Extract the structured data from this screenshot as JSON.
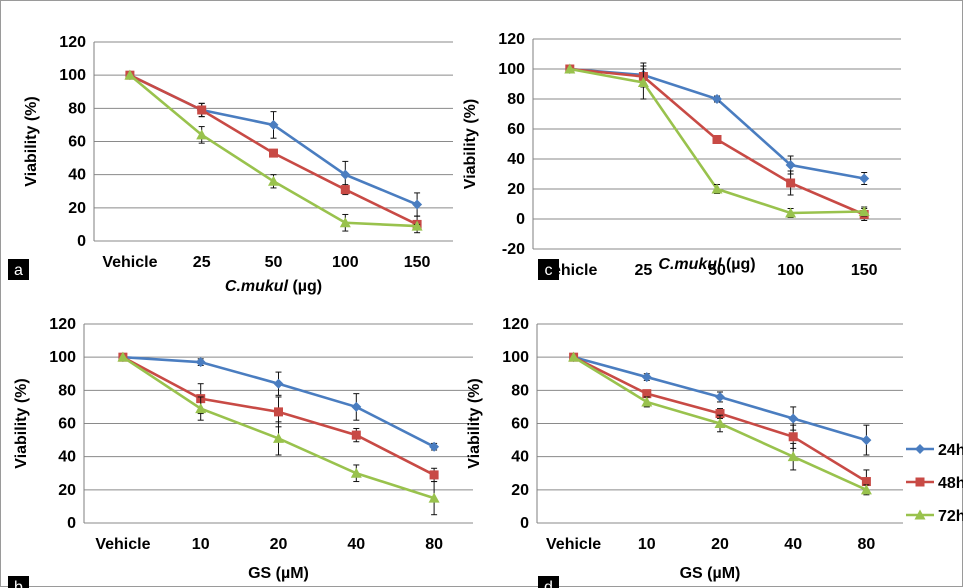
{
  "figure": {
    "colors": {
      "grid": "#8a8a8a",
      "axis": "#7f7f7f",
      "text": "#000000",
      "label_box_bg": "#000000",
      "label_box_fg": "#ffffff",
      "series": [
        "#4a7dc0",
        "#c84a45",
        "#99c24d"
      ]
    }
  },
  "legend": {
    "placement": "right of panel d",
    "items": [
      {
        "name": "24h",
        "color": "#4a7dc0",
        "marker": "diamond"
      },
      {
        "name": "48h",
        "color": "#c84a45",
        "marker": "square"
      },
      {
        "name": "72h",
        "color": "#99c24d",
        "marker": "triangle"
      }
    ]
  },
  "chart_data": [
    {
      "panel_label": "a",
      "type": "line",
      "title": "",
      "xlabel_italic": "C.mukul",
      "xlabel_units": " (µg)",
      "ylabel": "Viability (%)",
      "categories": [
        "Vehicle",
        "25",
        "50",
        "100",
        "150"
      ],
      "ylim": [
        0,
        120
      ],
      "yticks": [
        0,
        20,
        40,
        60,
        80,
        100,
        120
      ],
      "grid": true,
      "series": [
        {
          "name": "24h",
          "values": [
            100,
            79,
            70,
            40,
            22
          ],
          "errors": [
            0,
            4,
            8,
            8,
            7
          ]
        },
        {
          "name": "48h",
          "values": [
            100,
            79,
            53,
            31,
            10
          ],
          "errors": [
            0,
            4,
            2,
            3,
            5
          ]
        },
        {
          "name": "72h",
          "values": [
            100,
            64,
            36,
            11,
            9
          ],
          "errors": [
            0,
            5,
            4,
            5,
            1
          ]
        }
      ]
    },
    {
      "panel_label": "c",
      "type": "line",
      "title": "",
      "xlabel_italic": "C.mukul",
      "xlabel_units": " (µg)",
      "ylabel": "Viability (%)",
      "categories": [
        "Vehicle",
        "25",
        "50",
        "100",
        "150"
      ],
      "ylim": [
        -20,
        120
      ],
      "yticks": [
        -20,
        0,
        20,
        40,
        60,
        80,
        100,
        120
      ],
      "grid": true,
      "series": [
        {
          "name": "24h",
          "values": [
            100,
            96,
            80,
            36,
            27
          ],
          "errors": [
            0,
            8,
            2,
            6,
            4
          ]
        },
        {
          "name": "48h",
          "values": [
            100,
            95,
            53,
            24,
            3
          ],
          "errors": [
            0,
            5,
            2,
            8,
            4
          ]
        },
        {
          "name": "72h",
          "values": [
            100,
            91,
            20,
            4,
            5
          ],
          "errors": [
            0,
            11,
            3,
            3,
            3
          ]
        }
      ]
    },
    {
      "panel_label": "b",
      "type": "line",
      "title": "",
      "xlabel_italic": "",
      "xlabel_units": "GS (µM)",
      "ylabel": "Viability (%)",
      "categories": [
        "Vehicle",
        "10",
        "20",
        "40",
        "80"
      ],
      "ylim": [
        0,
        120
      ],
      "yticks": [
        0,
        20,
        40,
        60,
        80,
        100,
        120
      ],
      "grid": true,
      "series": [
        {
          "name": "24h",
          "values": [
            100,
            97,
            84,
            70,
            46
          ],
          "errors": [
            0,
            2,
            7,
            8,
            2
          ]
        },
        {
          "name": "48h",
          "values": [
            100,
            75,
            67,
            53,
            29
          ],
          "errors": [
            0,
            9,
            9,
            4,
            4
          ]
        },
        {
          "name": "72h",
          "values": [
            100,
            69,
            51,
            30,
            15
          ],
          "errors": [
            0,
            7,
            10,
            5,
            10
          ]
        }
      ]
    },
    {
      "panel_label": "d",
      "type": "line",
      "title": "",
      "xlabel_italic": "",
      "xlabel_units": "GS (µM)",
      "ylabel": "Viability (%)",
      "categories": [
        "Vehicle",
        "10",
        "20",
        "40",
        "80"
      ],
      "ylim": [
        0,
        120
      ],
      "yticks": [
        0,
        20,
        40,
        60,
        80,
        100,
        120
      ],
      "grid": true,
      "series": [
        {
          "name": "24h",
          "values": [
            100,
            88,
            76,
            63,
            50
          ],
          "errors": [
            0,
            2,
            3,
            7,
            9
          ]
        },
        {
          "name": "48h",
          "values": [
            100,
            78,
            66,
            52,
            25
          ],
          "errors": [
            0,
            2,
            3,
            7,
            7
          ]
        },
        {
          "name": "72h",
          "values": [
            100,
            73,
            60,
            40,
            20
          ],
          "errors": [
            0,
            3,
            5,
            8,
            3
          ]
        }
      ]
    }
  ]
}
